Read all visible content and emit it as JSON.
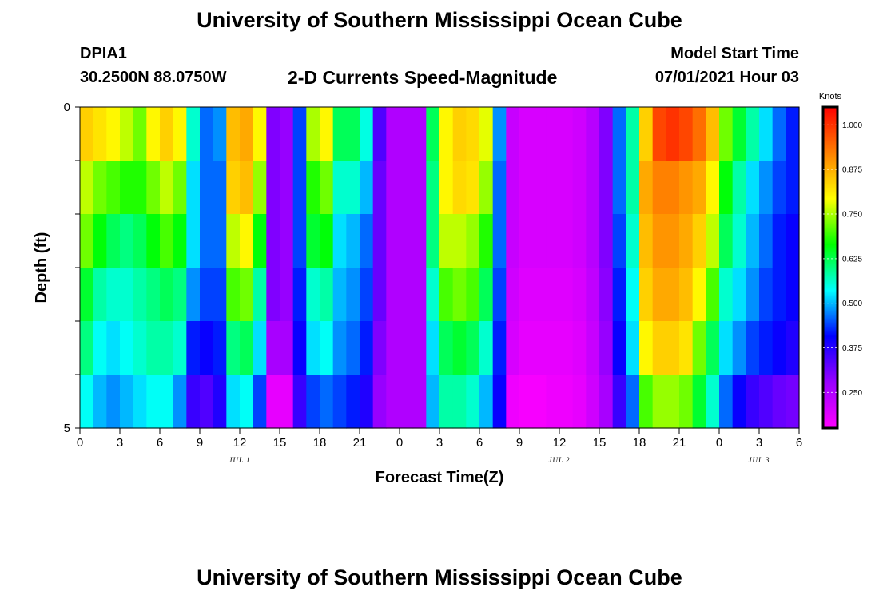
{
  "page_title_top": "University of Southern Mississippi Ocean Cube",
  "page_title_bottom": "University of Southern Mississippi Ocean Cube",
  "station": {
    "id": "DPIA1",
    "coords": "30.2500N  88.0750W"
  },
  "model_start": {
    "label": "Model Start Time",
    "value": "07/01/2021 Hour 03"
  },
  "chart_data": {
    "type": "heatmap",
    "title": "2-D Currents Speed-Magnitude",
    "xlabel": "Forecast Time(Z)",
    "ylabel": "Depth (ft)",
    "x_hours": [
      0,
      1,
      2,
      3,
      4,
      5,
      6,
      7,
      8,
      9,
      10,
      11,
      12,
      13,
      14,
      15,
      16,
      17,
      18,
      19,
      20,
      21,
      22,
      23,
      24,
      25,
      26,
      27,
      28,
      29,
      30,
      31,
      32,
      33,
      34,
      35,
      36,
      37,
      38,
      39,
      40,
      41,
      42,
      43,
      44,
      45,
      46,
      47,
      48,
      49,
      50,
      51,
      52,
      53,
      54
    ],
    "x_range_hours": [
      0,
      54
    ],
    "x_tick_labels": [
      "0",
      "3",
      "6",
      "9",
      "12",
      "15",
      "18",
      "21",
      "0",
      "3",
      "6",
      "9",
      "12",
      "15",
      "18",
      "21",
      "0",
      "3",
      "6"
    ],
    "date_labels": [
      {
        "text": "JUL 1",
        "hour": 12
      },
      {
        "text": "JUL 2",
        "hour": 36
      },
      {
        "text": "JUL 3",
        "hour": 51
      }
    ],
    "depth_layers": [
      {
        "label": "0"
      },
      {
        "label": ""
      },
      {
        "label": ""
      },
      {
        "label": ""
      },
      {
        "label": ""
      },
      {
        "label": "5"
      }
    ],
    "y_range": [
      0,
      5
    ],
    "y_tick_labels": [
      "0",
      "5"
    ],
    "value_range": [
      0.15,
      1.05
    ],
    "colorbar": {
      "title": "Knots",
      "range": [
        0.15,
        1.05
      ],
      "tick_labels": [
        "1.000",
        "0.875",
        "0.750",
        "0.625",
        "0.500",
        "0.375",
        "0.250"
      ],
      "tick_values": [
        1.0,
        0.875,
        0.75,
        0.625,
        0.5,
        0.375,
        0.25
      ],
      "colors": [
        "#ff00ff",
        "#9900ff",
        "#0000ff",
        "#00ffff",
        "#00ff00",
        "#ffff00",
        "#ff8000",
        "#ff0000"
      ]
    },
    "rows": [
      [
        0.84,
        0.82,
        0.8,
        0.76,
        0.72,
        0.8,
        0.84,
        0.8,
        0.56,
        0.46,
        0.48,
        0.86,
        0.88,
        0.8,
        0.3,
        0.28,
        0.44,
        0.75,
        0.8,
        0.62,
        0.62,
        0.55,
        0.34,
        0.25,
        0.25,
        0.25,
        0.62,
        0.8,
        0.84,
        0.83,
        0.78,
        0.48,
        0.22,
        0.2,
        0.2,
        0.2,
        0.2,
        0.21,
        0.24,
        0.3,
        0.46,
        0.58,
        0.84,
        0.98,
        1.0,
        0.98,
        0.94,
        0.86,
        0.72,
        0.64,
        0.58,
        0.52,
        0.46,
        0.42,
        0.4
      ],
      [
        0.76,
        0.72,
        0.7,
        0.68,
        0.68,
        0.72,
        0.76,
        0.72,
        0.52,
        0.46,
        0.46,
        0.84,
        0.86,
        0.74,
        0.3,
        0.28,
        0.44,
        0.68,
        0.72,
        0.56,
        0.56,
        0.5,
        0.32,
        0.25,
        0.25,
        0.25,
        0.6,
        0.8,
        0.83,
        0.82,
        0.74,
        0.46,
        0.22,
        0.2,
        0.2,
        0.2,
        0.2,
        0.21,
        0.24,
        0.3,
        0.46,
        0.58,
        0.88,
        0.92,
        0.92,
        0.9,
        0.88,
        0.8,
        0.66,
        0.58,
        0.52,
        0.48,
        0.44,
        0.42,
        0.4
      ],
      [
        0.72,
        0.66,
        0.62,
        0.6,
        0.62,
        0.66,
        0.7,
        0.66,
        0.52,
        0.46,
        0.46,
        0.76,
        0.8,
        0.66,
        0.3,
        0.28,
        0.44,
        0.64,
        0.66,
        0.52,
        0.5,
        0.46,
        0.32,
        0.25,
        0.25,
        0.25,
        0.6,
        0.76,
        0.76,
        0.74,
        0.68,
        0.46,
        0.22,
        0.2,
        0.2,
        0.2,
        0.2,
        0.21,
        0.24,
        0.3,
        0.44,
        0.56,
        0.86,
        0.9,
        0.9,
        0.88,
        0.84,
        0.76,
        0.62,
        0.56,
        0.5,
        0.46,
        0.42,
        0.4,
        0.38
      ],
      [
        0.64,
        0.58,
        0.56,
        0.56,
        0.58,
        0.6,
        0.62,
        0.6,
        0.48,
        0.44,
        0.44,
        0.7,
        0.72,
        0.58,
        0.3,
        0.28,
        0.42,
        0.56,
        0.58,
        0.5,
        0.48,
        0.44,
        0.32,
        0.25,
        0.25,
        0.25,
        0.56,
        0.7,
        0.72,
        0.7,
        0.62,
        0.44,
        0.21,
        0.19,
        0.19,
        0.19,
        0.19,
        0.2,
        0.23,
        0.29,
        0.42,
        0.54,
        0.84,
        0.88,
        0.88,
        0.86,
        0.8,
        0.7,
        0.56,
        0.52,
        0.48,
        0.44,
        0.42,
        0.4,
        0.38
      ],
      [
        0.6,
        0.54,
        0.52,
        0.54,
        0.56,
        0.58,
        0.58,
        0.56,
        0.42,
        0.4,
        0.42,
        0.6,
        0.62,
        0.52,
        0.26,
        0.26,
        0.4,
        0.52,
        0.54,
        0.48,
        0.46,
        0.42,
        0.3,
        0.25,
        0.25,
        0.25,
        0.52,
        0.62,
        0.64,
        0.62,
        0.56,
        0.42,
        0.2,
        0.18,
        0.18,
        0.18,
        0.18,
        0.19,
        0.22,
        0.28,
        0.4,
        0.52,
        0.8,
        0.84,
        0.84,
        0.82,
        0.72,
        0.62,
        0.52,
        0.48,
        0.44,
        0.42,
        0.4,
        0.38,
        0.36
      ],
      [
        0.54,
        0.5,
        0.48,
        0.5,
        0.52,
        0.54,
        0.54,
        0.48,
        0.36,
        0.34,
        0.38,
        0.52,
        0.54,
        0.44,
        0.18,
        0.18,
        0.36,
        0.44,
        0.46,
        0.44,
        0.42,
        0.38,
        0.28,
        0.25,
        0.25,
        0.25,
        0.5,
        0.58,
        0.58,
        0.56,
        0.5,
        0.4,
        0.17,
        0.16,
        0.16,
        0.17,
        0.17,
        0.18,
        0.21,
        0.26,
        0.36,
        0.46,
        0.7,
        0.74,
        0.74,
        0.72,
        0.64,
        0.56,
        0.46,
        0.4,
        0.36,
        0.34,
        0.32,
        0.31,
        0.3
      ]
    ]
  }
}
